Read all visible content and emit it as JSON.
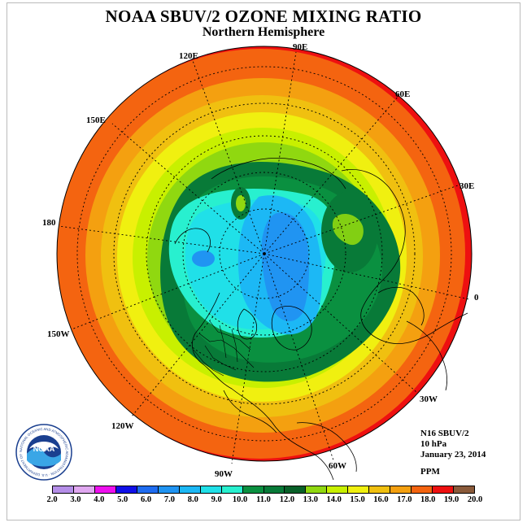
{
  "title": "NOAA SBUV/2 OZONE MIXING RATIO",
  "subtitle": "Northern Hemisphere",
  "longitude_labels": [
    "90E",
    "60E",
    "30E",
    "0",
    "30W",
    "60W",
    "90W",
    "120W",
    "150W",
    "180",
    "150E",
    "120E"
  ],
  "info": {
    "instrument": "N16 SBUV/2",
    "pressure": "10 hPa",
    "date": "January 23, 2014"
  },
  "units": "PPM",
  "colorbar": {
    "ticks": [
      "2.0",
      "3.0",
      "4.0",
      "5.0",
      "6.0",
      "7.0",
      "8.0",
      "9.0",
      "10.0",
      "11.0",
      "12.0",
      "13.0",
      "14.0",
      "15.0",
      "16.0",
      "17.0",
      "18.0",
      "19.0",
      "20.0"
    ],
    "colors": [
      "#b58ee8",
      "#e0a8f0",
      "#ee10ee",
      "#1010e8",
      "#1f6cf0",
      "#2094f2",
      "#1cb8f5",
      "#20e0e8",
      "#28f0cf",
      "#0a9040",
      "#087a38",
      "#086028",
      "#90d810",
      "#c8f000",
      "#f0f010",
      "#f0c010",
      "#f4a010",
      "#f46410",
      "#ee1010",
      "#8a5a3a"
    ]
  },
  "logo": {
    "text": "NOAA",
    "ring_text": "NATIONAL OCEANIC AND ATMOSPHERIC ADMINISTRATION · U.S. DEPARTMENT OF COMMERCE"
  }
}
